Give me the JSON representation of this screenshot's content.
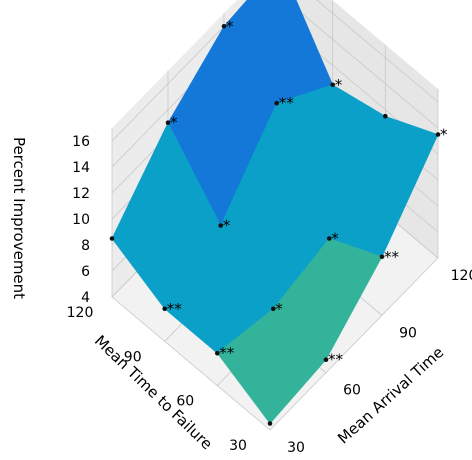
{
  "chart_data": {
    "type": "surface3d",
    "xlabel": "Mean Arrival Time",
    "ylabel": "Mean Time to Failure",
    "zlabel": "Percent Improvement",
    "x_ticks": [
      "30",
      "60",
      "90",
      "120"
    ],
    "y_ticks": [
      "30",
      "60",
      "90",
      "120"
    ],
    "z_ticks": [
      "4",
      "6",
      "8",
      "10",
      "12",
      "14",
      "16"
    ],
    "x": [
      30,
      60,
      90,
      120
    ],
    "y": [
      30,
      60,
      90,
      120
    ],
    "zlim": [
      4,
      17
    ],
    "points": [
      {
        "x": 30,
        "y": 30,
        "z": 4.5,
        "sig": ""
      },
      {
        "x": 60,
        "y": 30,
        "z": 5.0,
        "sig": "**"
      },
      {
        "x": 90,
        "y": 30,
        "z": 8.5,
        "sig": "**"
      },
      {
        "x": 120,
        "y": 30,
        "z": 13.5,
        "sig": "*"
      },
      {
        "x": 30,
        "y": 60,
        "z": 6.5,
        "sig": "**"
      },
      {
        "x": 60,
        "y": 60,
        "z": 5.5,
        "sig": "*"
      },
      {
        "x": 90,
        "y": 60,
        "z": 6.5,
        "sig": "*"
      },
      {
        "x": 120,
        "y": 60,
        "z": 11.5,
        "sig": ""
      },
      {
        "x": 30,
        "y": 90,
        "z": 6.5,
        "sig": "**"
      },
      {
        "x": 60,
        "y": 90,
        "z": 8.5,
        "sig": "*"
      },
      {
        "x": 90,
        "y": 90,
        "z": 13.5,
        "sig": "**"
      },
      {
        "x": 120,
        "y": 90,
        "z": 10.5,
        "sig": "*"
      },
      {
        "x": 30,
        "y": 120,
        "z": 8.5,
        "sig": ""
      },
      {
        "x": 60,
        "y": 120,
        "z": 13.0,
        "sig": "*"
      },
      {
        "x": 90,
        "y": 120,
        "z": 16.0,
        "sig": "*"
      },
      {
        "x": 120,
        "y": 120,
        "z": 16.5,
        "sig": ""
      }
    ],
    "colors": {
      "low": "#33b39a",
      "mid": "#0aa0c8",
      "high": "#1478d8",
      "pane": "#f2f2f2",
      "grid": "#c8c8c8"
    }
  }
}
